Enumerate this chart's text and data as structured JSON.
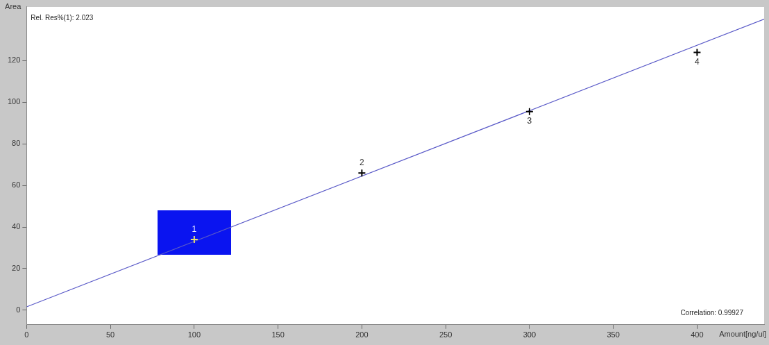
{
  "chart_data": {
    "type": "scatter",
    "xlabel": "Amount[ng/ul]",
    "ylabel": "Area",
    "xlim": [
      0,
      440
    ],
    "xticks": [
      0,
      50,
      100,
      150,
      200,
      250,
      300,
      350,
      400
    ],
    "ylim": [
      -7,
      146
    ],
    "yticks": [
      0,
      20,
      40,
      60,
      80,
      100,
      120
    ],
    "grid": false,
    "series": [
      {
        "marker": "cross",
        "x": [
          100,
          200,
          300,
          400
        ],
        "values": [
          34,
          66,
          95.5,
          124
        ],
        "colors": [
          "#e8e070",
          "#000000",
          "#000000",
          "#000000"
        ]
      },
      {
        "type": "line",
        "marker": "none",
        "x": [
          0,
          440
        ],
        "values": [
          1.6,
          140
        ],
        "color": "#5a5ac8"
      }
    ],
    "annotations": [
      "Rel. Res%(1): 2.023",
      {
        "text": "1",
        "x": 100,
        "y": 34
      },
      {
        "text": "2",
        "x": 200,
        "y": 66
      },
      {
        "text": "3",
        "x": 300,
        "y": 95.5
      },
      {
        "text": "4",
        "x": 400,
        "y": 124
      },
      "Correlation: 0.99927"
    ]
  }
}
